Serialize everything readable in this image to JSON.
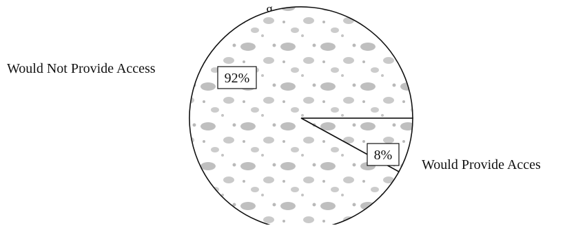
{
  "chart_data": {
    "type": "pie",
    "title": "",
    "slices": [
      {
        "label": "Would Not Provide Access",
        "value": 92,
        "value_label": "92%",
        "color": "#ffffff"
      },
      {
        "label": "Would Provide Access",
        "value": 8,
        "value_label": "8%",
        "color": "#ffffff"
      }
    ],
    "visible_title_fragment": "g",
    "visible_label_text": [
      "Would Not Provide Access",
      "Would Provide Acces"
    ],
    "texture_color": "#8a8a8a",
    "outline_color": "#111111"
  }
}
